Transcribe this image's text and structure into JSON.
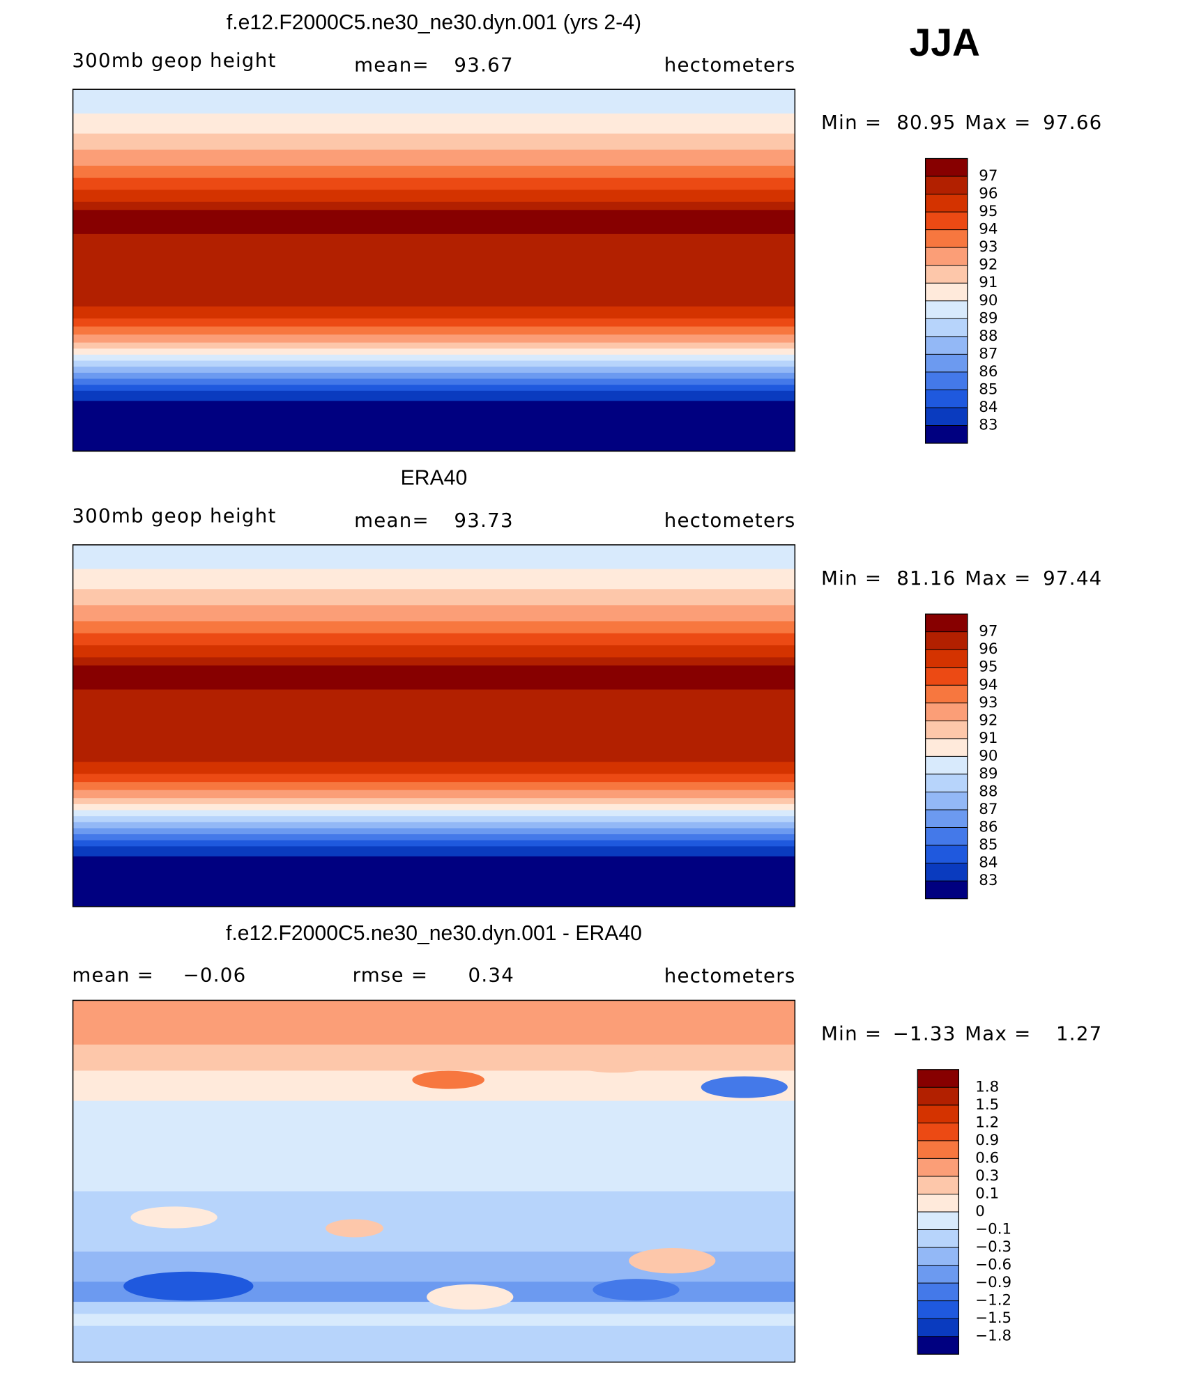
{
  "figure_label": "JJA",
  "panels": [
    {
      "title": "f.e12.F2000C5.ne30_ne30.dyn.001 (yrs 2-4)",
      "left_label": "300mb geop height",
      "mean_label": "mean=",
      "mean": 93.67,
      "units": "hectometers",
      "min_label": "Min =",
      "min": 80.95,
      "max_label": "Max =",
      "max": 97.66,
      "colorbar": {
        "levels": [
          97,
          96,
          95,
          94,
          93,
          92,
          91,
          90,
          89,
          88,
          87,
          86,
          85,
          84,
          83
        ],
        "colors": [
          "#870000",
          "#b22000",
          "#d43300",
          "#ec4a14",
          "#f7773f",
          "#fb9e77",
          "#fdc7aa",
          "#ffeadb",
          "#d8eafc",
          "#b7d4fb",
          "#93b8f6",
          "#6c9af0",
          "#4479e9",
          "#1f59de",
          "#0a3bbf",
          "#000080"
        ]
      }
    },
    {
      "title": "ERA40",
      "left_label": "300mb geop height",
      "mean_label": "mean=",
      "mean": 93.73,
      "units": "hectometers",
      "min_label": "Min =",
      "min": 81.16,
      "max_label": "Max =",
      "max": 97.44,
      "colorbar": {
        "levels": [
          97,
          96,
          95,
          94,
          93,
          92,
          91,
          90,
          89,
          88,
          87,
          86,
          85,
          84,
          83
        ],
        "colors": [
          "#870000",
          "#b22000",
          "#d43300",
          "#ec4a14",
          "#f7773f",
          "#fb9e77",
          "#fdc7aa",
          "#ffeadb",
          "#d8eafc",
          "#b7d4fb",
          "#93b8f6",
          "#6c9af0",
          "#4479e9",
          "#1f59de",
          "#0a3bbf",
          "#000080"
        ]
      }
    },
    {
      "title": "f.e12.F2000C5.ne30_ne30.dyn.001 - ERA40",
      "mean_label": "mean =",
      "mean": {
        "value": -0.06,
        "label": "−0.06"
      },
      "rmse_label": "rmse =",
      "rmse": 0.34,
      "units": "hectometers",
      "min_label": "Min =",
      "min": {
        "value": -1.33,
        "label": "−1.33"
      },
      "max_label": "Max =",
      "max": 1.27,
      "colorbar": {
        "levels": [
          1.8,
          1.5,
          1.2,
          0.9,
          0.6,
          0.3,
          0.1,
          0,
          {
            "value": -0.1,
            "label": "−0.1"
          },
          {
            "value": -0.3,
            "label": "−0.3"
          },
          {
            "value": -0.6,
            "label": "−0.6"
          },
          {
            "value": -0.9,
            "label": "−0.9"
          },
          {
            "value": -1.2,
            "label": "−1.2"
          },
          {
            "value": -1.5,
            "label": "−1.5"
          },
          {
            "value": -1.8,
            "label": "−1.8"
          }
        ],
        "colors": [
          "#870000",
          "#b22000",
          "#d43300",
          "#ec4a14",
          "#f7773f",
          "#fb9e77",
          "#fdc7aa",
          "#ffeadb",
          "#d8eafc",
          "#b7d4fb",
          "#93b8f6",
          "#6c9af0",
          "#4479e9",
          "#1f59de",
          "#0a3bbf",
          "#000080"
        ]
      }
    }
  ]
}
